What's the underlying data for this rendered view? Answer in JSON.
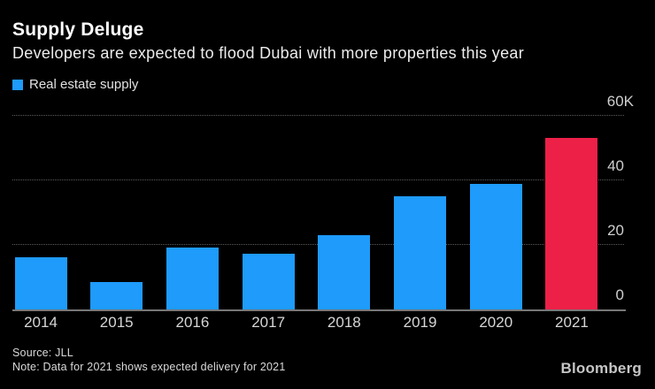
{
  "header": {
    "title": "Supply Deluge",
    "subtitle": "Developers are expected to flood Dubai with more properties this year"
  },
  "legend": {
    "label": "Real estate supply",
    "color": "#1e9bfb"
  },
  "footer": {
    "source": "Source: JLL",
    "note": "Note: Data for 2021 shows expected delivery for 2021",
    "brand": "Bloomberg"
  },
  "chart_data": {
    "type": "bar",
    "title": "Supply Deluge",
    "subtitle": "Developers are expected to flood Dubai with more properties this year",
    "series_name": "Real estate supply",
    "categories": [
      "2014",
      "2015",
      "2016",
      "2017",
      "2018",
      "2019",
      "2020",
      "2021"
    ],
    "values": [
      16.3,
      8.5,
      19.2,
      17.4,
      23.1,
      35.2,
      38.9,
      53.1
    ],
    "unit_suffix": "K",
    "ylim": [
      0,
      60
    ],
    "yticks": [
      {
        "value": 0,
        "label": "0"
      },
      {
        "value": 20,
        "label": "20"
      },
      {
        "value": 40,
        "label": "40"
      },
      {
        "value": 60,
        "label": "60K"
      }
    ],
    "grid": "horizontal-dotted",
    "legend_position": "top-left",
    "ytick_side": "right",
    "colors": {
      "default": "#1e9bfb",
      "highlight": "#ed2048"
    },
    "highlight_category": "2021",
    "source": "JLL",
    "note": "Data for 2021 shows expected delivery for 2021"
  }
}
